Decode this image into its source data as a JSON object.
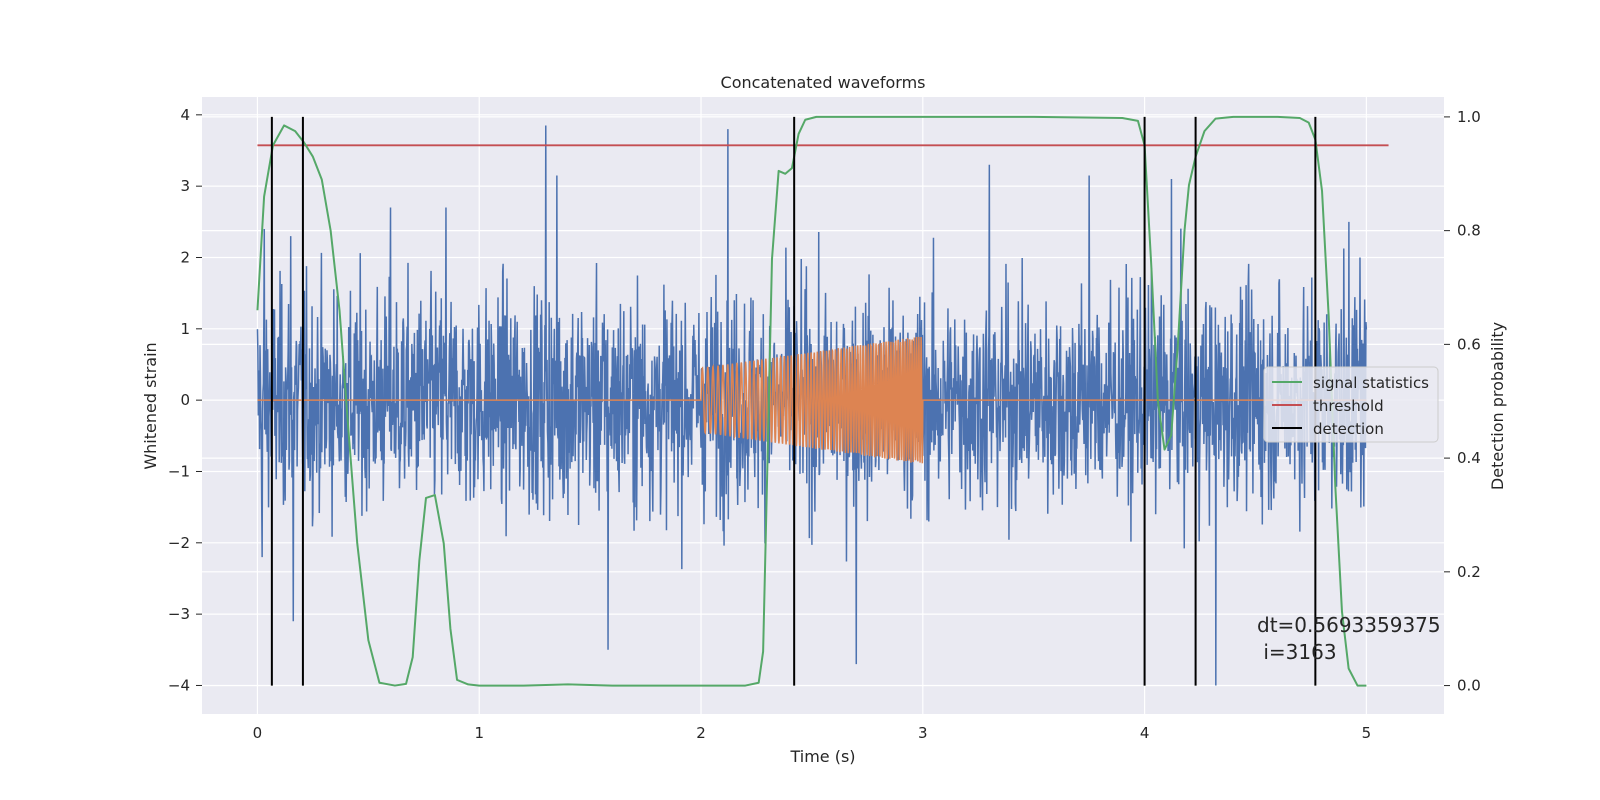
{
  "chart_data": {
    "type": "line",
    "title": "Concatenated waveforms",
    "xlabel": "Time (s)",
    "ylabel_left": "Whitened strain",
    "ylabel_right": "Detection probability",
    "xlim": [
      -0.25,
      5.35
    ],
    "ylim_left": [
      -4.4,
      4.25
    ],
    "ylim_right": [
      -0.05,
      1.035
    ],
    "x_ticks": [
      0,
      1,
      2,
      3,
      4,
      5
    ],
    "x_tick_labels": [
      "0",
      "1",
      "2",
      "3",
      "4",
      "5"
    ],
    "y_left_ticks": [
      4,
      3,
      2,
      1,
      0,
      -1,
      -2,
      -3,
      -4
    ],
    "y_left_tick_labels": [
      "4",
      "3",
      "2",
      "1",
      "0",
      "−1",
      "−2",
      "−3",
      "−4"
    ],
    "y_right_ticks": [
      1.0,
      0.8,
      0.6,
      0.4,
      0.2,
      0.0
    ],
    "y_right_tick_labels": [
      "1.0",
      "0.8",
      "0.6",
      "0.4",
      "0.2",
      "0.0"
    ],
    "grid": true,
    "legend_position": "center-right",
    "series": [
      {
        "name": "whitened strain",
        "axis": "left",
        "color": "#4c72b0",
        "description": "noise-like whitened strain",
        "x_range": [
          0,
          5
        ],
        "typical_amplitude": 1.0,
        "peak_samples": [
          {
            "x": 0.03,
            "y": 2.4
          },
          {
            "x": 0.02,
            "y": -2.2
          },
          {
            "x": 0.15,
            "y": 2.3
          },
          {
            "x": 0.16,
            "y": -3.1
          },
          {
            "x": 0.6,
            "y": 2.7
          },
          {
            "x": 0.85,
            "y": 2.7
          },
          {
            "x": 1.3,
            "y": 3.85
          },
          {
            "x": 1.35,
            "y": 3.15
          },
          {
            "x": 1.58,
            "y": -3.5
          },
          {
            "x": 2.12,
            "y": 3.8
          },
          {
            "x": 2.7,
            "y": -3.7
          },
          {
            "x": 3.3,
            "y": 3.3
          },
          {
            "x": 3.75,
            "y": 3.15
          },
          {
            "x": 4.12,
            "y": 3.1
          },
          {
            "x": 4.32,
            "y": -4.0
          },
          {
            "x": 4.92,
            "y": 2.5
          },
          {
            "x": 4.97,
            "y": 2.0
          }
        ]
      },
      {
        "name": "injected waveform",
        "axis": "left",
        "color": "#dd8452",
        "description": "chirp injected from 2.0 to 3.0 s",
        "x_range": [
          0,
          5
        ],
        "chirp_start": 2.0,
        "chirp_end": 3.0,
        "amplitude_start": 0.45,
        "amplitude_end": 0.9
      },
      {
        "name": "signal statistics",
        "axis": "right",
        "color": "#55a868",
        "x": [
          0.0,
          0.03,
          0.07,
          0.12,
          0.17,
          0.21,
          0.25,
          0.29,
          0.33,
          0.37,
          0.41,
          0.45,
          0.5,
          0.55,
          0.62,
          0.67,
          0.7,
          0.73,
          0.76,
          0.8,
          0.84,
          0.87,
          0.9,
          0.95,
          1.0,
          1.2,
          1.4,
          1.6,
          2.0,
          2.2,
          2.26,
          2.28,
          2.3,
          2.32,
          2.35,
          2.38,
          2.41,
          2.44,
          2.47,
          2.52,
          2.6,
          3.0,
          3.5,
          3.9,
          3.97,
          4.0,
          4.03,
          4.06,
          4.09,
          4.12,
          4.15,
          4.18,
          4.2,
          4.23,
          4.27,
          4.32,
          4.4,
          4.6,
          4.7,
          4.74,
          4.77,
          4.8,
          4.83,
          4.86,
          4.89,
          4.92,
          4.96,
          5.0
        ],
        "y": [
          0.66,
          0.86,
          0.95,
          0.985,
          0.975,
          0.955,
          0.93,
          0.89,
          0.8,
          0.66,
          0.45,
          0.25,
          0.08,
          0.005,
          0.0,
          0.003,
          0.05,
          0.22,
          0.33,
          0.335,
          0.25,
          0.1,
          0.01,
          0.002,
          0.0,
          0.0,
          0.002,
          0.0,
          0.0,
          0.0,
          0.005,
          0.06,
          0.4,
          0.75,
          0.905,
          0.9,
          0.91,
          0.97,
          0.995,
          1.0,
          1.0,
          1.0,
          1.0,
          0.998,
          0.993,
          0.95,
          0.74,
          0.5,
          0.415,
          0.44,
          0.6,
          0.8,
          0.88,
          0.93,
          0.975,
          0.997,
          1.0,
          1.0,
          0.998,
          0.99,
          0.96,
          0.87,
          0.65,
          0.35,
          0.13,
          0.03,
          0.0,
          0.0
        ]
      },
      {
        "name": "threshold",
        "axis": "right",
        "color": "#c44e52",
        "x": [
          0,
          5.1
        ],
        "y": [
          0.95,
          0.95
        ]
      },
      {
        "name": "detection",
        "axis": "right",
        "color": "#000000",
        "positions": [
          0.065,
          0.205,
          2.42,
          4.0,
          4.23,
          4.77
        ],
        "y_range": [
          0.0,
          1.0
        ]
      }
    ],
    "annotation": {
      "dt": "dt=0.5693359375",
      "i": " i=3163",
      "x": 4.5,
      "y_right": 0.1
    }
  },
  "legend": {
    "items": [
      {
        "label": "signal statistics",
        "color": "#55a868"
      },
      {
        "label": "threshold",
        "color": "#c44e52"
      },
      {
        "label": "detection",
        "color": "#000000"
      }
    ]
  }
}
